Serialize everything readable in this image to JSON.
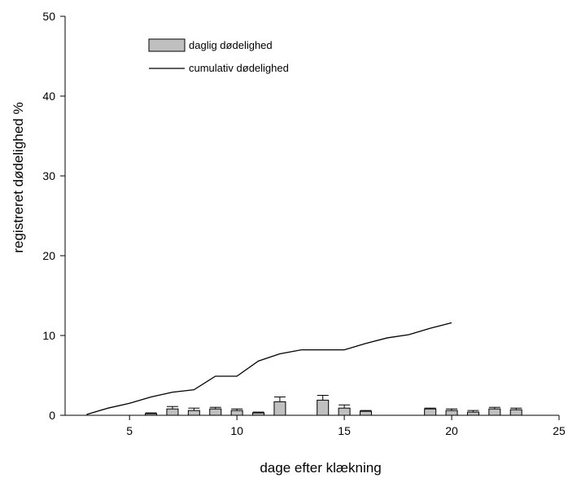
{
  "chart_data": {
    "type": "bar",
    "xlabel": "dage efter klækning",
    "ylabel": "registreret dødelighed %",
    "xlim": [
      2,
      25
    ],
    "ylim": [
      0,
      50
    ],
    "xticks": [
      5,
      10,
      15,
      20,
      25
    ],
    "yticks": [
      0,
      10,
      20,
      30,
      40,
      50
    ],
    "grid": false,
    "legend": {
      "position": "top-left",
      "entries": [
        "daglig dødelighed",
        "cumulativ dødelighed"
      ]
    },
    "series": [
      {
        "name": "daglig dødelighed",
        "type": "bar",
        "color": "#c0c0c0",
        "x": [
          6,
          7,
          8,
          9,
          10,
          11,
          12,
          14,
          15,
          16,
          19,
          20,
          21,
          22,
          23
        ],
        "values": [
          0.2,
          0.8,
          0.6,
          0.8,
          0.6,
          0.3,
          1.7,
          1.9,
          0.9,
          0.5,
          0.8,
          0.6,
          0.4,
          0.8,
          0.7
        ],
        "error": [
          0.1,
          0.3,
          0.3,
          0.2,
          0.2,
          0.1,
          0.6,
          0.6,
          0.4,
          0.1,
          0.1,
          0.2,
          0.2,
          0.2,
          0.2
        ]
      },
      {
        "name": "cumulativ dødelighed",
        "type": "line",
        "color": "#000000",
        "x": [
          3,
          4,
          5,
          6,
          7,
          8,
          9,
          10,
          11,
          12,
          13,
          14,
          15,
          16,
          17,
          18,
          19,
          20
        ],
        "values": [
          0.1,
          0.9,
          1.5,
          2.3,
          2.9,
          3.2,
          4.9,
          4.9,
          6.8,
          7.7,
          8.2,
          8.2,
          8.2,
          9.0,
          9.7,
          10.1,
          10.9,
          11.6
        ]
      }
    ]
  }
}
